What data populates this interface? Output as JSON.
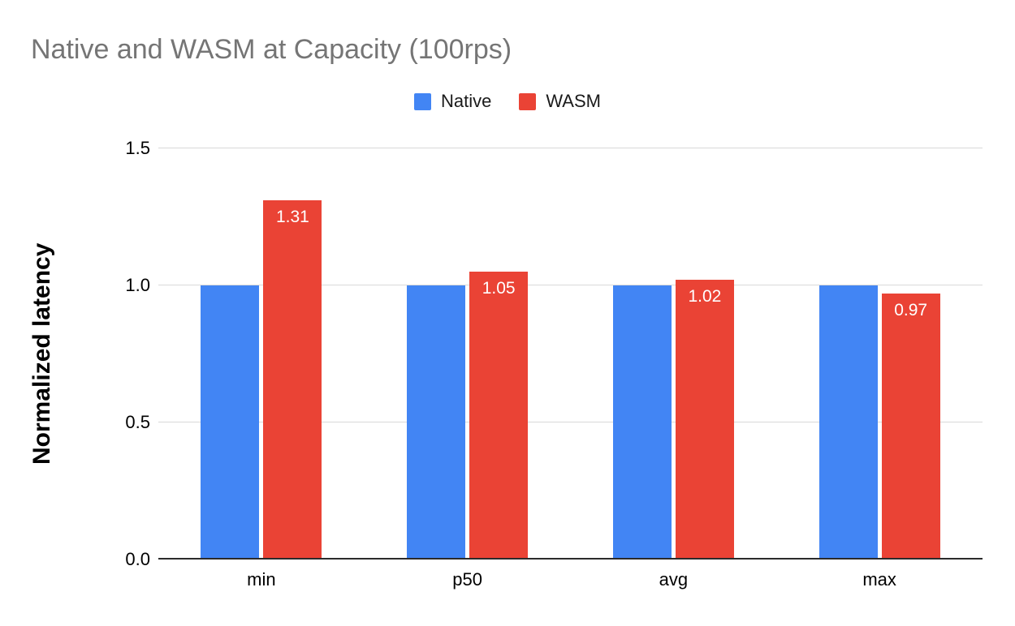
{
  "title": "Native and WASM at Capacity (100rps)",
  "colors": {
    "background": "#ffffff",
    "title_text": "#757575",
    "gridline": "#d9d9d9",
    "axis_line": "#2b2b2b",
    "tick_label": "#000000",
    "native_blue": "#4285f4",
    "wasm_red": "#ea4335",
    "data_label": "#ffffff"
  },
  "legend": {
    "items": [
      {
        "label": "Native",
        "color": "#4285f4"
      },
      {
        "label": "WASM",
        "color": "#ea4335"
      }
    ]
  },
  "chart_data": {
    "type": "bar",
    "title": "Native and WASM at Capacity (100rps)",
    "categories": [
      "min",
      "p50",
      "avg",
      "max"
    ],
    "series": [
      {
        "name": "Native",
        "color": "#4285f4",
        "values": [
          1.0,
          1.0,
          1.0,
          1.0
        ],
        "data_labels": null
      },
      {
        "name": "WASM",
        "color": "#ea4335",
        "values": [
          1.31,
          1.05,
          1.02,
          0.97
        ],
        "data_labels": [
          "1.31",
          "1.05",
          "1.02",
          "0.97"
        ]
      }
    ],
    "xlabel": "",
    "ylabel": "Normalized latency",
    "ylim": [
      0,
      1.5
    ],
    "yticks": [
      0,
      0.5,
      1.0,
      1.5
    ],
    "ytick_labels": [
      "0.0",
      "0.5",
      "1.0",
      "1.5"
    ],
    "grid": true,
    "legend_position": "top-center",
    "data_label_position": "inside-top"
  }
}
